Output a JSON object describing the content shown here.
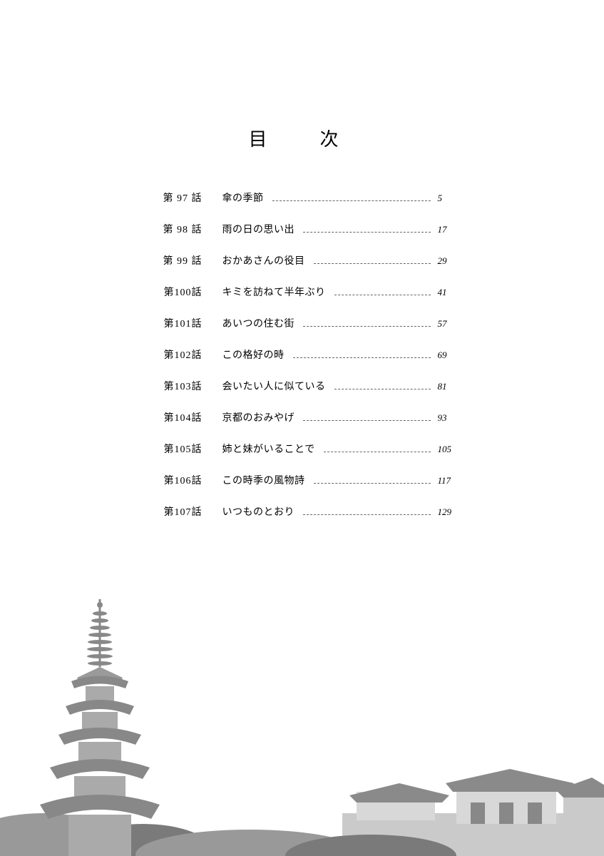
{
  "title": "目　次",
  "episode_prefix": "第",
  "episode_suffix": "話",
  "entries": [
    {
      "num": "97",
      "title": "傘の季節",
      "page": "5"
    },
    {
      "num": "98",
      "title": "雨の日の思い出",
      "page": "17"
    },
    {
      "num": "99",
      "title": "おかあさんの役目",
      "page": "29"
    },
    {
      "num": "100",
      "title": "キミを訪ねて半年ぶり",
      "page": "41"
    },
    {
      "num": "101",
      "title": "あいつの住む街",
      "page": "57"
    },
    {
      "num": "102",
      "title": "この格好の時",
      "page": "69"
    },
    {
      "num": "103",
      "title": "会いたい人に似ている",
      "page": "81"
    },
    {
      "num": "104",
      "title": "京都のおみやげ",
      "page": "93"
    },
    {
      "num": "105",
      "title": "姉と妹がいることで",
      "page": "105"
    },
    {
      "num": "106",
      "title": "この時季の風物詩",
      "page": "117"
    },
    {
      "num": "107",
      "title": "いつものとおり",
      "page": "129"
    }
  ],
  "illustration": {
    "pagoda_fill": "#888888",
    "pagoda_light": "#aaaaaa",
    "roof_fill": "#8a8a8a",
    "wall_fill": "#cacaca",
    "wall_light": "#d8d8d8",
    "tree_fill": "#999999",
    "tree_dark": "#7a7a7a"
  }
}
